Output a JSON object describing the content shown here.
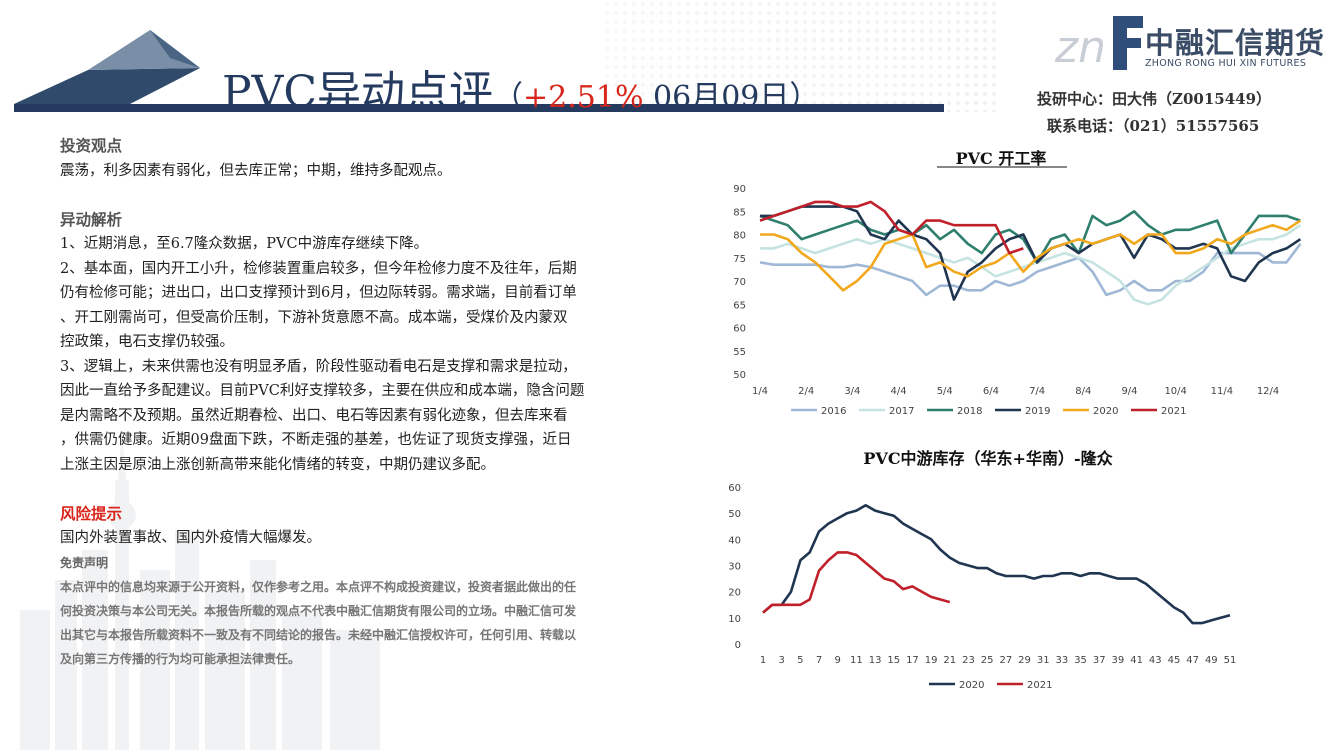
{
  "header": {
    "title_main": "PVC异动点评",
    "title_open": "（",
    "title_pct": "+2.51%",
    "title_date": " 06月09日",
    "title_close": "）"
  },
  "logo": {
    "mark": "znf",
    "name_cn": "中融汇信期货",
    "name_en": "ZHONG RONG HUI XIN FUTURES"
  },
  "contact": {
    "line1": "投研中心：田大伟（Z0015449）",
    "line2": "联系电话：（021）51557565"
  },
  "content": {
    "view_title": "投资观点",
    "view_text": "震荡，利多因素有弱化，但去库正常；中期，维持多配观点。",
    "analysis_title": "异动解析",
    "analysis_lines": [
      "1、近期消息，至6.7隆众数据，PVC中游库存继续下降。",
      "2、基本面，国内开工小升，检修装置重启较多，但今年检修力度不及往年，后期",
      "仍有检修可能；进出口，出口支撑预计到6月，但边际转弱。需求端，目前看订单",
      "、开工刚需尚可，但受高价压制，下游补货意愿不高。成本端，受煤价及内蒙双",
      "控政策，电石支撑仍较强。",
      "3、逻辑上，未来供需也没有明显矛盾，阶段性驱动看电石是支撑和需求是拉动，",
      "因此一直给予多配建议。目前PVC利好支撑较多，主要在供应和成本端，隐含问题",
      "是内需略不及预期。虽然近期春检、出口、电石等因素有弱化迹象，但去库来看",
      "，供需仍健康。近期09盘面下跌，不断走强的基差，也佐证了现货支撑强，近日",
      "上涨主因是原油上涨创新高带来能化情绪的转变，中期仍建议多配。"
    ],
    "risk_title": "风险提示",
    "risk_text": "国内外装置事故、国内外疫情大幅爆发。",
    "disclaimer_title": "免责声明",
    "disclaimer_lines": [
      "本点评中的信息均来源于公开资料，仅作参考之用。本点评不构成投资建议，投资者据此做出的任",
      "何投资决策与本公司无关。本报告所载的观点不代表中融汇信期货有限公司的立场。中融汇信可发",
      "出其它与本报告所载资料不一致及有不同结论的报告。未经中融汇信授权许可，任何引用、转载以",
      "及向第三方传播的行为均可能承担法律责任。"
    ]
  },
  "colors": {
    "navy": "#243a5e",
    "red": "#d9261c",
    "s2016": "#9fb8d6",
    "s2017": "#c4e3e1",
    "s2018": "#2e7f6d",
    "s2019": "#1f3550",
    "s2020": "#f2a81d",
    "s2021": "#c0202a"
  },
  "chart_data": [
    {
      "type": "line",
      "title": "PVC 开工率",
      "ylim": [
        50,
        90
      ],
      "yticks": [
        50,
        55,
        60,
        65,
        70,
        75,
        80,
        85,
        90
      ],
      "x_ticks": [
        "1/4",
        "2/4",
        "3/4",
        "4/4",
        "5/4",
        "6/4",
        "7/4",
        "8/4",
        "9/4",
        "10/4",
        "11/4",
        "12/4"
      ],
      "x_range_months": [
        1,
        12.8
      ],
      "legend_position": "bottom",
      "series": [
        {
          "name": "2016",
          "color": "#9fb8d6",
          "x": [
            1,
            1.3,
            1.6,
            1.9,
            2.2,
            2.5,
            2.8,
            3.1,
            3.4,
            3.7,
            4.0,
            4.3,
            4.6,
            4.9,
            5.2,
            5.5,
            5.8,
            6.1,
            6.4,
            6.7,
            7.0,
            7.3,
            7.6,
            7.9,
            8.2,
            8.5,
            8.8,
            9.1,
            9.4,
            9.7,
            10.0,
            10.3,
            10.6,
            10.9,
            11.2,
            11.5,
            11.8,
            12.1,
            12.4,
            12.7
          ],
          "y": [
            74,
            73.5,
            73.5,
            73.5,
            73.5,
            73,
            73,
            73.5,
            73,
            72,
            71,
            70,
            67,
            69,
            69,
            68,
            68,
            70,
            69,
            70,
            72,
            73,
            74,
            75,
            72,
            67,
            68,
            70,
            68,
            68,
            70,
            70,
            72,
            76,
            76,
            76,
            76,
            74,
            74,
            78
          ]
        },
        {
          "name": "2017",
          "color": "#c4e3e1",
          "x": [
            1,
            1.3,
            1.6,
            1.9,
            2.2,
            2.5,
            2.8,
            3.1,
            3.4,
            3.7,
            4.0,
            4.3,
            4.6,
            4.9,
            5.2,
            5.5,
            5.8,
            6.1,
            6.4,
            6.7,
            7.0,
            7.3,
            7.6,
            7.9,
            8.2,
            8.5,
            8.8,
            9.1,
            9.4,
            9.7,
            10.0,
            10.3,
            10.6,
            10.9,
            11.2,
            11.5,
            11.8,
            12.1,
            12.4,
            12.7
          ],
          "y": [
            77,
            77,
            78,
            77,
            76,
            77,
            78,
            79,
            78,
            79,
            78,
            77,
            76,
            75,
            74,
            75,
            73,
            71,
            72,
            73,
            74,
            75,
            76,
            75,
            74,
            72,
            70,
            66,
            65,
            66,
            69,
            71,
            73,
            75,
            77,
            78,
            79,
            79,
            80,
            82
          ]
        },
        {
          "name": "2018",
          "color": "#2e7f6d",
          "x": [
            1,
            1.3,
            1.6,
            1.9,
            2.2,
            2.5,
            2.8,
            3.1,
            3.4,
            3.7,
            4.0,
            4.3,
            4.6,
            4.9,
            5.2,
            5.5,
            5.8,
            6.1,
            6.4,
            6.7,
            7.0,
            7.3,
            7.6,
            7.9,
            8.2,
            8.5,
            8.8,
            9.1,
            9.4,
            9.7,
            10.0,
            10.3,
            10.6,
            10.9,
            11.2,
            11.5,
            11.8,
            12.1,
            12.4,
            12.7
          ],
          "y": [
            84,
            83,
            82,
            79,
            80,
            81,
            82,
            83,
            81,
            80,
            81,
            80,
            82,
            79,
            81,
            78,
            76,
            80,
            81,
            79,
            74,
            79,
            80,
            76,
            84,
            82,
            83,
            85,
            82,
            80,
            81,
            81,
            82,
            83,
            76,
            80,
            84,
            84,
            84,
            83
          ]
        },
        {
          "name": "2019",
          "color": "#1f3550",
          "x": [
            1,
            1.3,
            1.6,
            1.9,
            2.2,
            2.5,
            2.8,
            3.1,
            3.4,
            3.7,
            4.0,
            4.3,
            4.6,
            4.9,
            5.2,
            5.5,
            5.8,
            6.1,
            6.4,
            6.7,
            7.0,
            7.3,
            7.6,
            7.9,
            8.2,
            8.5,
            8.8,
            9.1,
            9.4,
            9.7,
            10.0,
            10.3,
            10.6,
            10.9,
            11.2,
            11.5,
            11.8,
            12.1,
            12.4,
            12.7
          ],
          "y": [
            84,
            84,
            85,
            86,
            86,
            86,
            86,
            85,
            80,
            79,
            83,
            80,
            79,
            76,
            66,
            72,
            74,
            77,
            79,
            80,
            74,
            77,
            78,
            76,
            78,
            79,
            80,
            75,
            80,
            79,
            77,
            77,
            78,
            77,
            71,
            70,
            74,
            76,
            77,
            79
          ]
        },
        {
          "name": "2020",
          "color": "#f2a81d",
          "x": [
            1,
            1.3,
            1.6,
            1.9,
            2.2,
            2.5,
            2.8,
            3.1,
            3.4,
            3.7,
            4.0,
            4.3,
            4.6,
            4.9,
            5.2,
            5.5,
            5.8,
            6.1,
            6.4,
            6.7,
            7.0,
            7.3,
            7.6,
            7.9,
            8.2,
            8.5,
            8.8,
            9.1,
            9.4,
            9.7,
            10.0,
            10.3,
            10.6,
            10.9,
            11.2,
            11.5,
            11.8,
            12.1,
            12.4,
            12.7
          ],
          "y": [
            80,
            80,
            79,
            76,
            74,
            71,
            68,
            70,
            73,
            78,
            79,
            80,
            73,
            74,
            72,
            71,
            73,
            74,
            76,
            72,
            75,
            77,
            78,
            79,
            78,
            79,
            80,
            78,
            80,
            80,
            76,
            76,
            77,
            79,
            78,
            80,
            81,
            82,
            81,
            83
          ]
        },
        {
          "name": "2021",
          "color": "#c0202a",
          "x": [
            1,
            1.3,
            1.6,
            1.9,
            2.2,
            2.5,
            2.8,
            3.1,
            3.4,
            3.7,
            4.0,
            4.3,
            4.6,
            4.9,
            5.2,
            5.5,
            5.8,
            6.1,
            6.4,
            6.7
          ],
          "y": [
            83,
            84,
            85,
            86,
            87,
            87,
            86,
            86,
            87,
            85,
            81,
            80,
            83,
            83,
            82,
            82,
            82,
            82,
            76,
            77
          ]
        }
      ]
    },
    {
      "type": "line",
      "title": "PVC中游库存（华东+华南）-隆众",
      "ylim": [
        0,
        60
      ],
      "yticks": [
        0,
        10,
        20,
        30,
        40,
        50,
        60
      ],
      "x_ticks": [
        "1",
        "3",
        "5",
        "7",
        "9",
        "11",
        "13",
        "15",
        "17",
        "19",
        "21",
        "23",
        "25",
        "27",
        "29",
        "31",
        "33",
        "35",
        "37",
        "39",
        "41",
        "43",
        "45",
        "47",
        "49",
        "51"
      ],
      "x_range": [
        1,
        51
      ],
      "legend_position": "bottom",
      "series": [
        {
          "name": "2020",
          "color": "#1f3550",
          "x": [
            1,
            2,
            3,
            4,
            5,
            6,
            7,
            8,
            9,
            10,
            11,
            12,
            13,
            14,
            15,
            16,
            17,
            18,
            19,
            20,
            21,
            22,
            23,
            24,
            25,
            26,
            27,
            28,
            29,
            30,
            31,
            32,
            33,
            34,
            35,
            36,
            37,
            38,
            39,
            40,
            41,
            42,
            43,
            44,
            45,
            46,
            47,
            48,
            49,
            50,
            51
          ],
          "y": [
            12,
            15,
            15,
            20,
            32,
            35,
            43,
            46,
            48,
            50,
            51,
            53,
            51,
            50,
            49,
            46,
            44,
            42,
            40,
            36,
            33,
            31,
            30,
            29,
            29,
            27,
            26,
            26,
            26,
            25,
            26,
            26,
            27,
            27,
            26,
            27,
            27,
            26,
            25,
            25,
            25,
            23,
            20,
            17,
            14,
            12,
            8,
            8,
            9,
            10,
            11
          ]
        },
        {
          "name": "2021",
          "color": "#c0202a",
          "x": [
            1,
            2,
            3,
            4,
            5,
            6,
            7,
            8,
            9,
            10,
            11,
            12,
            13,
            14,
            15,
            16,
            17,
            18,
            19,
            20,
            21
          ],
          "y": [
            12,
            15,
            15,
            15,
            15,
            17,
            28,
            32,
            35,
            35,
            34,
            31,
            28,
            25,
            24,
            21,
            22,
            20,
            18,
            17,
            16
          ]
        }
      ]
    }
  ]
}
